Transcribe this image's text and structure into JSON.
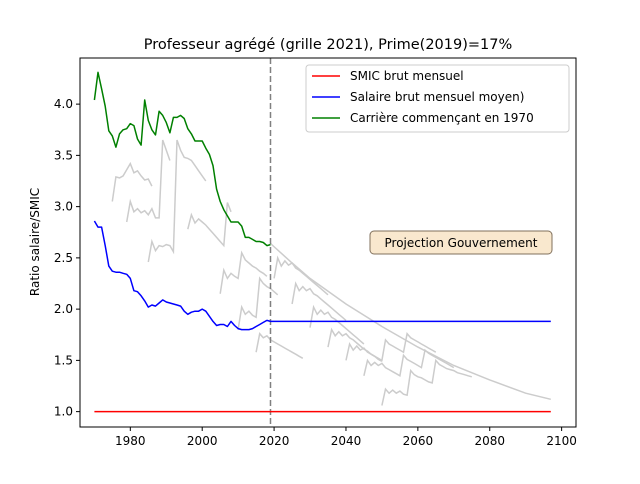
{
  "chart_data": {
    "type": "line",
    "title": "Professeur agrégé (grille 2021), Prime(2019)=17%",
    "xlabel": "",
    "ylabel": "Ratio salaire/SMIC",
    "xlim": [
      1966,
      2104
    ],
    "ylim": [
      0.85,
      4.45
    ],
    "xticks": [
      1980,
      2000,
      2020,
      2040,
      2060,
      2080,
      2100
    ],
    "yticks": [
      1.0,
      1.5,
      2.0,
      2.5,
      3.0,
      3.5,
      4.0
    ],
    "xtick_labels": [
      "1980",
      "2000",
      "2020",
      "2040",
      "2060",
      "2080",
      "2100"
    ],
    "ytick_labels": [
      "1.0",
      "1.5",
      "2.0",
      "2.5",
      "3.0",
      "3.5",
      "4.0"
    ],
    "vline": {
      "x": 2019,
      "style": "dashed",
      "color": "#808080"
    },
    "annotation": {
      "text": "Projection Gouvernement",
      "x": 2057,
      "y": 2.65
    },
    "legend_position": "top-right",
    "series": [
      {
        "name": "SMIC brut mensuel",
        "color": "#ff0000",
        "x": [
          1970,
          2097
        ],
        "y": [
          1.0,
          1.0
        ]
      },
      {
        "name": "Salaire brut mensuel moyen)",
        "color": "#0000ff",
        "x": [
          1970,
          1971,
          1972,
          1973,
          1974,
          1975,
          1976,
          1977,
          1978,
          1979,
          1980,
          1981,
          1982,
          1983,
          1984,
          1985,
          1986,
          1987,
          1988,
          1989,
          1990,
          1991,
          1992,
          1993,
          1994,
          1995,
          1996,
          1997,
          1998,
          1999,
          2000,
          2001,
          2002,
          2003,
          2004,
          2005,
          2006,
          2007,
          2008,
          2009,
          2010,
          2011,
          2012,
          2013,
          2014,
          2015,
          2016,
          2017,
          2018,
          2019,
          2097
        ],
        "y": [
          2.86,
          2.8,
          2.8,
          2.62,
          2.42,
          2.37,
          2.36,
          2.36,
          2.35,
          2.34,
          2.3,
          2.18,
          2.17,
          2.13,
          2.08,
          2.02,
          2.04,
          2.03,
          2.06,
          2.09,
          2.07,
          2.06,
          2.05,
          2.04,
          2.03,
          1.98,
          1.95,
          1.97,
          1.98,
          1.98,
          2.0,
          1.98,
          1.93,
          1.88,
          1.84,
          1.85,
          1.85,
          1.83,
          1.88,
          1.84,
          1.81,
          1.8,
          1.8,
          1.8,
          1.81,
          1.83,
          1.85,
          1.87,
          1.89,
          1.88,
          1.88
        ]
      },
      {
        "name": "Carrière commençant en 1970",
        "color": "#008000",
        "x": [
          1970,
          1971,
          1972,
          1973,
          1974,
          1975,
          1976,
          1977,
          1978,
          1979,
          1980,
          1981,
          1982,
          1983,
          1984,
          1985,
          1986,
          1987,
          1988,
          1989,
          1990,
          1991,
          1992,
          1993,
          1994,
          1995,
          1996,
          1997,
          1998,
          1999,
          2000,
          2001,
          2002,
          2003,
          2004,
          2005,
          2006,
          2007,
          2008,
          2009,
          2010,
          2011,
          2012,
          2013,
          2014,
          2015,
          2016,
          2017,
          2018,
          2019
        ],
        "y": [
          4.04,
          4.31,
          4.15,
          3.98,
          3.74,
          3.69,
          3.58,
          3.71,
          3.75,
          3.76,
          3.81,
          3.79,
          3.66,
          3.6,
          4.04,
          3.84,
          3.75,
          3.7,
          3.93,
          3.89,
          3.82,
          3.72,
          3.87,
          3.87,
          3.89,
          3.86,
          3.76,
          3.71,
          3.64,
          3.64,
          3.64,
          3.57,
          3.51,
          3.4,
          3.17,
          3.05,
          2.97,
          2.91,
          2.85,
          2.85,
          2.85,
          2.81,
          2.7,
          2.7,
          2.68,
          2.66,
          2.66,
          2.65,
          2.62,
          2.63
        ]
      }
    ],
    "background_careers": {
      "color": "#cccccc",
      "description_points": [
        {
          "x": [
            1975,
            1976,
            1977,
            1978,
            1979,
            1980,
            1981,
            1982,
            1983,
            1984,
            1985,
            1986
          ],
          "y": [
            3.05,
            3.29,
            3.28,
            3.3,
            3.36,
            3.42,
            3.33,
            3.35,
            3.3,
            3.26,
            3.27,
            3.2
          ]
        },
        {
          "x": [
            1979,
            1980,
            1981,
            1982,
            1983,
            1984,
            1985,
            1986,
            1987,
            1988,
            1989,
            1990,
            1991
          ],
          "y": [
            2.85,
            3.05,
            2.95,
            2.98,
            2.94,
            2.96,
            2.92,
            2.98,
            2.89,
            2.89,
            3.65,
            3.55,
            3.45
          ]
        },
        {
          "x": [
            1985,
            1986,
            1987,
            1988,
            1989,
            1990,
            1991,
            1992,
            1993,
            1994,
            1995,
            1996,
            1997,
            1998,
            1999,
            2000,
            2001
          ],
          "y": [
            2.46,
            2.66,
            2.57,
            2.62,
            2.61,
            2.63,
            2.62,
            2.56,
            3.65,
            3.55,
            3.48,
            3.47,
            3.45,
            3.4,
            3.35,
            3.3,
            3.25
          ]
        },
        {
          "x": [
            1996,
            1997,
            1998,
            1999,
            2000,
            2001,
            2002,
            2003,
            2004,
            2005,
            2006,
            2007,
            2008
          ],
          "y": [
            2.78,
            2.92,
            2.84,
            2.88,
            2.85,
            2.82,
            2.78,
            2.74,
            2.7,
            2.66,
            2.62,
            3.04,
            2.95
          ]
        },
        {
          "x": [
            2005,
            2006,
            2007,
            2008,
            2009,
            2010,
            2011,
            2012,
            2013,
            2014,
            2015,
            2016,
            2017,
            2018
          ],
          "y": [
            2.15,
            2.38,
            2.3,
            2.35,
            2.32,
            2.3,
            2.55,
            2.48,
            2.45,
            2.42,
            2.4,
            2.37,
            2.35,
            2.32
          ]
        },
        {
          "x": [
            2010,
            2011,
            2012,
            2013,
            2014,
            2015,
            2016,
            2017,
            2018,
            2019,
            2020,
            2021
          ],
          "y": [
            1.8,
            2.02,
            1.95,
            1.98,
            1.94,
            1.92,
            2.3,
            2.25,
            2.22,
            2.2,
            2.17,
            2.14
          ]
        },
        {
          "x": [
            2015,
            2016,
            2017,
            2018,
            2019,
            2020,
            2021,
            2022,
            2023,
            2024,
            2025,
            2026,
            2027,
            2028
          ],
          "y": [
            1.58,
            1.76,
            1.72,
            1.74,
            1.7,
            1.68,
            1.66,
            1.64,
            1.62,
            1.6,
            1.58,
            1.56,
            1.54,
            1.52
          ]
        },
        {
          "x": [
            2019,
            2025,
            2030,
            2040,
            2050,
            2060,
            2070,
            2080,
            2090,
            2097
          ],
          "y": [
            2.64,
            2.45,
            2.3,
            2.05,
            1.83,
            1.63,
            1.45,
            1.31,
            1.18,
            1.12
          ]
        },
        {
          "x": [
            2020,
            2021,
            2022,
            2023,
            2024,
            2025,
            2026,
            2027,
            2028,
            2029,
            2030,
            2031,
            2032,
            2033,
            2034,
            2035
          ],
          "y": [
            2.3,
            2.5,
            2.42,
            2.47,
            2.43,
            2.45,
            2.4,
            2.38,
            2.35,
            2.32,
            2.29,
            2.26,
            2.23,
            2.2,
            2.17,
            2.14
          ]
        },
        {
          "x": [
            2025,
            2026,
            2027,
            2028,
            2029,
            2030,
            2031,
            2032,
            2033,
            2034,
            2035,
            2036,
            2037,
            2038,
            2039,
            2040
          ],
          "y": [
            2.05,
            2.25,
            2.18,
            2.22,
            2.18,
            2.2,
            2.15,
            2.13,
            2.1,
            2.07,
            2.04,
            2.01,
            1.98,
            1.95,
            1.92,
            1.89
          ]
        },
        {
          "x": [
            2030,
            2031,
            2032,
            2033,
            2034,
            2035,
            2036,
            2037,
            2038,
            2039,
            2040,
            2041,
            2042,
            2043,
            2044,
            2045
          ],
          "y": [
            1.82,
            2.02,
            1.95,
            1.99,
            1.95,
            1.97,
            1.92,
            1.9,
            1.87,
            1.84,
            1.81,
            1.78,
            1.75,
            1.72,
            1.69,
            1.66
          ]
        },
        {
          "x": [
            2035,
            2036,
            2037,
            2038,
            2039,
            2040,
            2041,
            2042,
            2043,
            2044,
            2045,
            2046,
            2047,
            2048,
            2049,
            2050
          ],
          "y": [
            1.63,
            1.8,
            1.74,
            1.78,
            1.74,
            1.76,
            1.72,
            1.7,
            1.67,
            1.64,
            1.61,
            1.59,
            1.56,
            1.54,
            1.51,
            1.49
          ]
        },
        {
          "x": [
            2040,
            2041,
            2042,
            2043,
            2044,
            2045,
            2046,
            2047,
            2048,
            2049,
            2050,
            2051,
            2052,
            2053,
            2054,
            2055,
            2056,
            2057,
            2058,
            2059,
            2060,
            2061,
            2062,
            2063,
            2064,
            2065
          ],
          "y": [
            1.5,
            1.66,
            1.6,
            1.64,
            1.6,
            1.62,
            1.58,
            1.56,
            1.54,
            1.52,
            1.5,
            1.7,
            1.66,
            1.64,
            1.62,
            1.6,
            1.58,
            1.76,
            1.72,
            1.7,
            1.68,
            1.66,
            1.64,
            1.62,
            1.6,
            1.58
          ]
        },
        {
          "x": [
            2045,
            2046,
            2047,
            2048,
            2049,
            2050,
            2051,
            2052,
            2053,
            2054,
            2055,
            2056,
            2057,
            2058,
            2059,
            2060,
            2061,
            2062,
            2063,
            2064,
            2065,
            2066,
            2067,
            2068,
            2069,
            2070
          ],
          "y": [
            1.35,
            1.5,
            1.45,
            1.48,
            1.45,
            1.47,
            1.43,
            1.41,
            1.39,
            1.37,
            1.35,
            1.55,
            1.51,
            1.49,
            1.47,
            1.45,
            1.43,
            1.6,
            1.57,
            1.55,
            1.53,
            1.51,
            1.49,
            1.47,
            1.45,
            1.43
          ]
        },
        {
          "x": [
            2050,
            2051,
            2052,
            2053,
            2054,
            2055,
            2056,
            2057,
            2058,
            2059,
            2060,
            2061,
            2062,
            2063,
            2064,
            2065,
            2066,
            2067,
            2068,
            2069,
            2070,
            2071,
            2072,
            2073,
            2074,
            2075
          ],
          "y": [
            1.06,
            1.22,
            1.18,
            1.21,
            1.18,
            1.2,
            1.17,
            1.16,
            1.4,
            1.36,
            1.34,
            1.33,
            1.31,
            1.29,
            1.28,
            1.5,
            1.46,
            1.44,
            1.42,
            1.41,
            1.4,
            1.38,
            1.37,
            1.36,
            1.35,
            1.34
          ]
        }
      ]
    }
  }
}
